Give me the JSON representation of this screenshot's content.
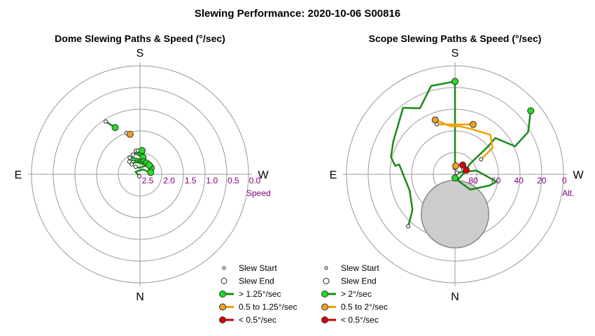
{
  "title": "Slewing Performance: 2020-10-06 S00816",
  "colors": {
    "fast": "#1a8a1a",
    "fast_marker": "#22dd22",
    "medium": "#f0a000",
    "medium_marker": "#f0a020",
    "slow": "#cc0000",
    "slow_marker": "#dd0000",
    "ring": "#9a9a9a",
    "tick": "#800080",
    "limit": "#cccccc"
  },
  "chart_data": [
    {
      "type": "polar",
      "title": "Dome Slewing Paths & Speed (°/sec)",
      "compass": {
        "top": "S",
        "bottom": "N",
        "left": "E",
        "right": "W"
      },
      "radial_axis": {
        "label": "Speed",
        "ticks": [
          "2.5",
          "2.0",
          "1.5",
          "1.0",
          "0.5",
          "0.0"
        ],
        "range": [
          2.5,
          0.0
        ]
      },
      "legend": {
        "placement": "bottom-right",
        "items": [
          {
            "label": "Slew Start",
            "kind": "start"
          },
          {
            "label": "Slew End",
            "kind": "end"
          },
          {
            "label": "> 1.25°/sec",
            "kind": "fast"
          },
          {
            "label": "0.5 to 1.25°/sec",
            "kind": "medium"
          },
          {
            "label": "< 0.5°/sec",
            "kind": "slow"
          }
        ]
      },
      "paths": [
        {
          "speed": "medium",
          "points": [
            [
              346,
              1.55
            ],
            [
              342,
              1.5
            ]
          ]
        },
        {
          "speed": "fast",
          "points": [
            [
              3,
              2.0
            ],
            [
              350,
              1.95
            ]
          ]
        },
        {
          "speed": "fast",
          "points": [
            [
              332,
              1.28
            ],
            [
              327,
              1.05
            ]
          ]
        },
        {
          "speed": "fast",
          "points": [
            [
              5,
              1.95
            ],
            [
              355,
              1.95
            ]
          ]
        },
        {
          "speed": "fast",
          "points": [
            [
              10,
              2.1
            ],
            [
              355,
              2.05
            ],
            [
              345,
              2.0
            ],
            [
              340,
              2.02
            ]
          ]
        },
        {
          "speed": "fast",
          "points": [
            [
              15,
              2.2
            ],
            [
              355,
              2.15
            ],
            [
              335,
              2.08
            ],
            [
              328,
              2.05
            ]
          ]
        },
        {
          "speed": "fast",
          "points": [
            [
              30,
              2.2
            ],
            [
              0,
              2.2
            ],
            [
              330,
              2.12
            ],
            [
              320,
              2.12
            ]
          ]
        },
        {
          "speed": "fast",
          "points": [
            [
              60,
              2.2
            ],
            [
              15,
              2.25
            ],
            [
              340,
              2.2
            ],
            [
              320,
              2.2
            ]
          ]
        },
        {
          "speed": "fast",
          "points": [
            [
              45,
              2.2
            ],
            [
              25,
              2.3
            ],
            [
              355,
              2.35
            ],
            [
              330,
              2.3
            ]
          ]
        },
        {
          "speed": "fast",
          "points": [
            [
              80,
              2.25
            ],
            [
              30,
              2.37
            ],
            [
              300,
              2.38
            ],
            [
              200,
              2.45
            ]
          ]
        }
      ]
    },
    {
      "type": "polar",
      "title": "Scope Slewing Paths & Speed (°/sec)",
      "compass": {
        "top": "S",
        "bottom": "N",
        "left": "E",
        "right": "W"
      },
      "radial_axis": {
        "label": "Alt.",
        "ticks": [
          "80",
          "60",
          "40",
          "20",
          "0"
        ],
        "range": [
          90,
          0
        ]
      },
      "limit_zone": {
        "azimuth": 180,
        "altitude": 57,
        "radius_deg": 14
      },
      "legend": {
        "placement": "bottom-right",
        "items": [
          {
            "label": "Slew Start",
            "kind": "start"
          },
          {
            "label": "Slew End",
            "kind": "end"
          },
          {
            "label": "> 2°/sec",
            "kind": "fast"
          },
          {
            "label": "0.5 to 2°/sec",
            "kind": "medium"
          },
          {
            "label": "< 0.5°/sec",
            "kind": "slow"
          }
        ]
      },
      "paths": [
        {
          "speed": "fast",
          "points": [
            [
              0,
              13
            ],
            [
              0,
              30
            ],
            [
              0,
              50
            ],
            [
              0,
              75
            ],
            [
              0,
              85
            ]
          ]
        },
        {
          "speed": "fast",
          "points": [
            [
              0,
              13
            ],
            [
              -15,
              14
            ],
            [
              -28,
              28
            ],
            [
              -38,
              20
            ],
            [
              -50,
              28
            ],
            [
              -62,
              32
            ],
            [
              -75,
              35
            ],
            [
              -82,
              40
            ],
            [
              -80,
              43
            ],
            [
              -110,
              50
            ],
            [
              -130,
              44
            ],
            [
              -138,
              32
            ]
          ]
        },
        {
          "speed": "fast",
          "points": [
            [
              50,
              8
            ],
            [
              60,
              20
            ],
            [
              65,
              35
            ],
            [
              48,
              45
            ],
            [
              50,
              55
            ],
            [
              55,
              75
            ],
            [
              80,
              82
            ],
            [
              150,
              85
            ],
            [
              170,
              88
            ],
            [
              180,
              87
            ]
          ]
        },
        {
          "speed": "fast",
          "points": [
            [
              180,
              87
            ],
            [
              170,
              86
            ],
            [
              135,
              72
            ],
            [
              115,
              65
            ],
            [
              108,
              60
            ],
            [
              100,
              55
            ],
            [
              80,
              72
            ],
            [
              50,
              88
            ]
          ]
        },
        {
          "speed": "medium",
          "points": [
            [
              20,
              46
            ],
            [
              10,
              48
            ],
            [
              -10,
              48
            ],
            [
              -20,
              46
            ]
          ]
        },
        {
          "speed": "medium",
          "points": [
            [
              -20,
              42
            ],
            [
              -5,
              50
            ],
            [
              5,
              50
            ],
            [
              20,
              50
            ],
            [
              42,
              46
            ],
            [
              55,
              52
            ],
            [
              60,
              65
            ]
          ]
        },
        {
          "speed": "medium",
          "points": [
            [
              5,
              83
            ],
            [
              20,
              82
            ],
            [
              35,
              78
            ],
            [
              50,
              80
            ]
          ]
        },
        {
          "speed": "slow",
          "points": [
            [
              40,
              80
            ],
            [
              58,
              82
            ]
          ]
        },
        {
          "speed": "slow",
          "points": [
            [
              70,
              80
            ],
            [
              75,
              80
            ]
          ]
        }
      ]
    }
  ]
}
